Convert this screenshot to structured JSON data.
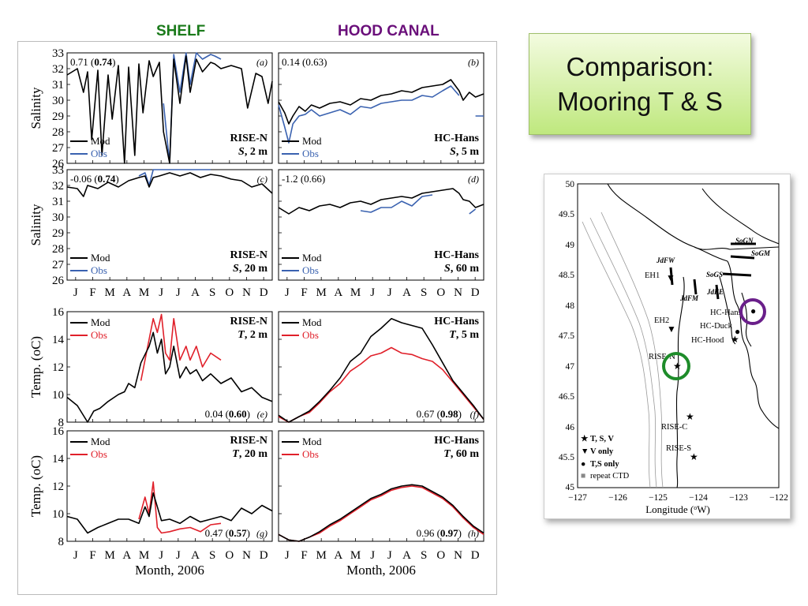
{
  "headers": {
    "shelf": "SHELF",
    "hood_canal": "HOOD CANAL"
  },
  "title": {
    "line1": "Comparison:",
    "line2": "Mooring T & S"
  },
  "months": [
    "J",
    "F",
    "M",
    "A",
    "M",
    "J",
    "J",
    "A",
    "S",
    "O",
    "N",
    "D"
  ],
  "x_title": "Month, 2006",
  "colors": {
    "mod": "#000000",
    "obs_salinity": "#3a62b0",
    "obs_temp": "#e0202a",
    "shelf_header": "#1a7a1a",
    "hood_header": "#6a0f7a"
  },
  "chart_data": [
    {
      "panel": "a",
      "type": "line",
      "ylabel": "Salinity",
      "ylim": [
        26,
        33
      ],
      "yticks": [
        "26",
        "27",
        "28",
        "29",
        "30",
        "31",
        "32",
        "33"
      ],
      "stat_plain": "0.71 (",
      "stat_bold": "0.74",
      "stat_tail": ")",
      "station": "RISE-N",
      "var": "S",
      "depth": ", 2 m",
      "legend": [
        "Mod",
        "Obs"
      ],
      "x": [
        0,
        0.05,
        0.08,
        0.1,
        0.12,
        0.15,
        0.17,
        0.2,
        0.22,
        0.25,
        0.28,
        0.3,
        0.33,
        0.35,
        0.37,
        0.4,
        0.42,
        0.45,
        0.47,
        0.5,
        0.52,
        0.55,
        0.58,
        0.6,
        0.63,
        0.66,
        0.7,
        0.72,
        0.75,
        0.8,
        0.85,
        0.88,
        0.92,
        0.95,
        0.98,
        1.0
      ],
      "mod": [
        31.6,
        32.0,
        30.5,
        31.8,
        27.5,
        31.9,
        26.5,
        31.6,
        28.8,
        32.2,
        26.0,
        32.1,
        26.5,
        32.3,
        29.2,
        32.5,
        31.5,
        32.4,
        28.0,
        26.0,
        32.6,
        29.8,
        32.8,
        30.5,
        32.6,
        31.8,
        32.4,
        32.3,
        32.0,
        32.2,
        32.0,
        29.5,
        31.7,
        31.5,
        29.8,
        31.2
      ],
      "obs": [
        null,
        null,
        null,
        null,
        null,
        null,
        null,
        null,
        null,
        null,
        null,
        null,
        null,
        null,
        null,
        null,
        null,
        null,
        29.8,
        25.5,
        32.9,
        30.5,
        33.0,
        31.0,
        33.0,
        32.6,
        32.9,
        32.8,
        32.6,
        null,
        null,
        null,
        null,
        null,
        null,
        null
      ]
    },
    {
      "panel": "b",
      "type": "line",
      "ylim": [
        26,
        33
      ],
      "stat_plain": "0.14 (0.63)",
      "stat_bold": "",
      "stat_tail": "",
      "station": "HC-Hans",
      "var": "S",
      "depth": ", 5 m",
      "legend": [
        "Mod",
        "Obs"
      ],
      "x": [
        0,
        0.03,
        0.05,
        0.07,
        0.1,
        0.13,
        0.16,
        0.2,
        0.25,
        0.3,
        0.35,
        0.4,
        0.45,
        0.5,
        0.55,
        0.6,
        0.65,
        0.7,
        0.75,
        0.8,
        0.84,
        0.88,
        0.9,
        0.93,
        0.96,
        1.0
      ],
      "mod": [
        29.9,
        29.2,
        28.5,
        29.0,
        29.6,
        29.3,
        29.7,
        29.5,
        29.8,
        29.9,
        29.7,
        30.1,
        30.0,
        30.3,
        30.4,
        30.6,
        30.5,
        30.8,
        30.9,
        31.0,
        31.3,
        30.6,
        30.0,
        30.5,
        30.2,
        30.4
      ],
      "obs": [
        29.7,
        28.3,
        27.3,
        28.5,
        29.0,
        29.1,
        29.4,
        29.0,
        29.2,
        29.4,
        29.1,
        29.6,
        29.5,
        29.8,
        29.9,
        30.0,
        30.0,
        30.3,
        30.2,
        30.6,
        30.9,
        30.3,
        null,
        null,
        29.0,
        29.0
      ]
    },
    {
      "panel": "c",
      "type": "line",
      "ylabel": "Salinity",
      "ylim": [
        26,
        33
      ],
      "stat_plain": "-0.06 (",
      "stat_bold": "0.74",
      "stat_tail": ")",
      "station": "RISE-N",
      "var": "S",
      "depth": ", 20 m",
      "legend": [
        "Mod",
        "Obs"
      ],
      "x": [
        0,
        0.05,
        0.08,
        0.1,
        0.15,
        0.2,
        0.25,
        0.3,
        0.35,
        0.38,
        0.4,
        0.42,
        0.45,
        0.5,
        0.55,
        0.6,
        0.65,
        0.7,
        0.75,
        0.8,
        0.85,
        0.9,
        0.95,
        1.0
      ],
      "mod": [
        31.9,
        31.8,
        31.3,
        32.0,
        31.8,
        32.2,
        31.9,
        32.3,
        32.5,
        32.6,
        31.9,
        32.5,
        32.6,
        32.8,
        32.6,
        32.8,
        32.5,
        32.7,
        32.6,
        32.4,
        32.3,
        31.9,
        32.1,
        31.5
      ],
      "obs": [
        null,
        null,
        null,
        null,
        null,
        null,
        null,
        null,
        32.6,
        32.8,
        32.0,
        33.3,
        33.4,
        33.4,
        33.3,
        33.3,
        33.2,
        33.1,
        null,
        null,
        null,
        null,
        null,
        null
      ]
    },
    {
      "panel": "d",
      "type": "line",
      "ylim": [
        26,
        33
      ],
      "stat_plain": "-1.2 (0.66)",
      "stat_bold": "",
      "stat_tail": "",
      "station": "HC-Hans",
      "var": "S",
      "depth": ", 60 m",
      "legend": [
        "Mod",
        "Obs"
      ],
      "x": [
        0,
        0.05,
        0.1,
        0.15,
        0.2,
        0.25,
        0.3,
        0.35,
        0.4,
        0.45,
        0.5,
        0.55,
        0.6,
        0.65,
        0.7,
        0.75,
        0.8,
        0.85,
        0.88,
        0.9,
        0.93,
        0.96,
        1.0
      ],
      "mod": [
        30.6,
        30.2,
        30.6,
        30.4,
        30.7,
        30.8,
        30.6,
        30.9,
        31.0,
        30.8,
        31.1,
        31.2,
        31.3,
        31.2,
        31.5,
        31.6,
        31.7,
        31.8,
        31.5,
        31.1,
        31.0,
        30.6,
        30.8
      ],
      "obs": [
        null,
        null,
        null,
        null,
        null,
        null,
        30.1,
        null,
        30.4,
        30.3,
        30.6,
        30.6,
        31.0,
        30.7,
        31.3,
        31.4,
        null,
        null,
        null,
        null,
        30.2,
        30.5,
        null
      ]
    },
    {
      "panel": "e",
      "type": "line",
      "ylabel": "Temp. (oC)",
      "ylim": [
        8,
        16
      ],
      "yticks": [
        "8",
        "10",
        "12",
        "14",
        "16"
      ],
      "stat_plain": "0.04 (",
      "stat_bold": "0.60",
      "stat_tail": ")",
      "station": "RISE-N",
      "var": "T",
      "depth": ", 2 m",
      "legend": [
        "Mod",
        "Obs"
      ],
      "x": [
        0,
        0.05,
        0.1,
        0.13,
        0.16,
        0.2,
        0.25,
        0.28,
        0.3,
        0.33,
        0.36,
        0.4,
        0.42,
        0.44,
        0.46,
        0.48,
        0.5,
        0.52,
        0.55,
        0.58,
        0.6,
        0.63,
        0.66,
        0.7,
        0.75,
        0.8,
        0.85,
        0.9,
        0.95,
        1.0
      ],
      "mod": [
        9.8,
        9.2,
        8.0,
        8.8,
        9.0,
        9.5,
        10.0,
        10.2,
        10.8,
        10.5,
        12.3,
        13.5,
        14.5,
        13.0,
        14.0,
        11.5,
        12.0,
        13.5,
        11.2,
        12.0,
        11.5,
        11.8,
        11.0,
        11.5,
        10.8,
        11.2,
        10.2,
        10.5,
        9.8,
        9.5
      ],
      "obs": [
        null,
        null,
        null,
        null,
        null,
        null,
        null,
        null,
        null,
        null,
        11.0,
        14.0,
        15.5,
        14.5,
        15.8,
        13.0,
        12.5,
        15.5,
        12.5,
        13.5,
        12.5,
        13.5,
        12.0,
        13.0,
        12.5,
        null,
        null,
        null,
        null,
        null
      ]
    },
    {
      "panel": "f",
      "type": "line",
      "ylim": [
        8,
        16
      ],
      "stat_plain": "0.67 (",
      "stat_bold": "0.98",
      "stat_tail": ")",
      "station": "HC-Hans",
      "var": "T",
      "depth": ", 5 m",
      "legend": [
        "Mod",
        "Obs"
      ],
      "x": [
        0,
        0.05,
        0.1,
        0.15,
        0.2,
        0.25,
        0.3,
        0.35,
        0.4,
        0.45,
        0.5,
        0.55,
        0.6,
        0.65,
        0.7,
        0.75,
        0.8,
        0.85,
        0.9,
        0.95,
        1.0
      ],
      "mod": [
        8.5,
        8.0,
        8.4,
        8.8,
        9.5,
        10.3,
        11.2,
        12.4,
        13.0,
        14.2,
        14.8,
        15.5,
        15.2,
        15.0,
        14.8,
        13.6,
        12.3,
        11.0,
        10.1,
        9.2,
        8.2
      ],
      "obs": [
        8.4,
        8.0,
        8.4,
        8.7,
        9.4,
        10.2,
        10.8,
        11.7,
        12.2,
        12.8,
        13.0,
        13.4,
        13.0,
        12.9,
        12.6,
        12.4,
        11.8,
        10.9,
        10.0,
        9.1,
        8.2
      ]
    },
    {
      "panel": "g",
      "type": "line",
      "ylabel": "Temp. (oC)",
      "ylim": [
        8,
        16
      ],
      "stat_plain": "0.47 (",
      "stat_bold": "0.57",
      "stat_tail": ")",
      "station": "RISE-N",
      "var": "T",
      "depth": ", 20 m",
      "legend": [
        "Mod",
        "Obs"
      ],
      "x": [
        0,
        0.05,
        0.1,
        0.15,
        0.2,
        0.25,
        0.3,
        0.35,
        0.38,
        0.4,
        0.42,
        0.44,
        0.46,
        0.5,
        0.55,
        0.6,
        0.65,
        0.7,
        0.75,
        0.8,
        0.85,
        0.9,
        0.95,
        1.0
      ],
      "mod": [
        9.8,
        9.6,
        8.6,
        9.0,
        9.3,
        9.6,
        9.6,
        9.3,
        10.5,
        9.8,
        11.5,
        10.5,
        9.5,
        9.6,
        9.3,
        9.8,
        9.4,
        9.6,
        9.8,
        9.5,
        10.4,
        10.0,
        10.6,
        10.2
      ],
      "obs": [
        null,
        null,
        null,
        null,
        null,
        null,
        null,
        9.6,
        11.2,
        10.0,
        12.3,
        9.0,
        8.6,
        8.7,
        8.9,
        9.0,
        8.7,
        9.2,
        9.3,
        null,
        null,
        null,
        null,
        null
      ]
    },
    {
      "panel": "h",
      "type": "line",
      "ylim": [
        8,
        16
      ],
      "stat_plain": "0.96 (",
      "stat_bold": "0.97",
      "stat_tail": ")",
      "station": "HC-Hans",
      "var": "T",
      "depth": ", 60 m",
      "legend": [
        "Mod",
        "Obs"
      ],
      "x": [
        0,
        0.05,
        0.1,
        0.15,
        0.2,
        0.25,
        0.3,
        0.35,
        0.4,
        0.45,
        0.5,
        0.55,
        0.6,
        0.65,
        0.7,
        0.75,
        0.8,
        0.85,
        0.9,
        0.95,
        1.0
      ],
      "mod": [
        8.5,
        8.1,
        8.0,
        8.3,
        8.7,
        9.2,
        9.6,
        10.1,
        10.6,
        11.1,
        11.4,
        11.8,
        12.0,
        12.1,
        12.0,
        11.6,
        11.2,
        10.6,
        9.8,
        9.1,
        8.6
      ],
      "obs": [
        8.5,
        8.1,
        8.0,
        8.3,
        8.6,
        9.1,
        9.5,
        10.0,
        10.5,
        11.0,
        11.3,
        11.7,
        11.9,
        12.0,
        11.9,
        11.5,
        11.1,
        10.5,
        9.7,
        9.0,
        8.5
      ]
    }
  ],
  "map": {
    "y_ticks": [
      "45",
      "45.5",
      "46",
      "46.5",
      "47",
      "47.5",
      "48",
      "48.5",
      "49",
      "49.5",
      "50"
    ],
    "x_ticks": [
      "−127",
      "−126",
      "−125",
      "−124",
      "−123",
      "−122"
    ],
    "xlabel_pre": "Longitude (",
    "xlabel_sup": "o",
    "xlabel_post": "W)",
    "sections": [
      "JdFW",
      "JdFM",
      "JdFE",
      "SoGS",
      "SoGM",
      "SoGN"
    ],
    "stations": [
      "EH1",
      "EH2",
      "RISE-N",
      "RISE-C",
      "RISE-S",
      "HC-Hans",
      "HC-Duck",
      "HC-Hood"
    ],
    "legend": [
      {
        "symbol": "★",
        "label": "T, S, V"
      },
      {
        "symbol": "▼",
        "label": "V only"
      },
      {
        "symbol": "●",
        "label": "T,S only"
      },
      {
        "symbol": "■",
        "label": "repeat CTD"
      }
    ]
  }
}
